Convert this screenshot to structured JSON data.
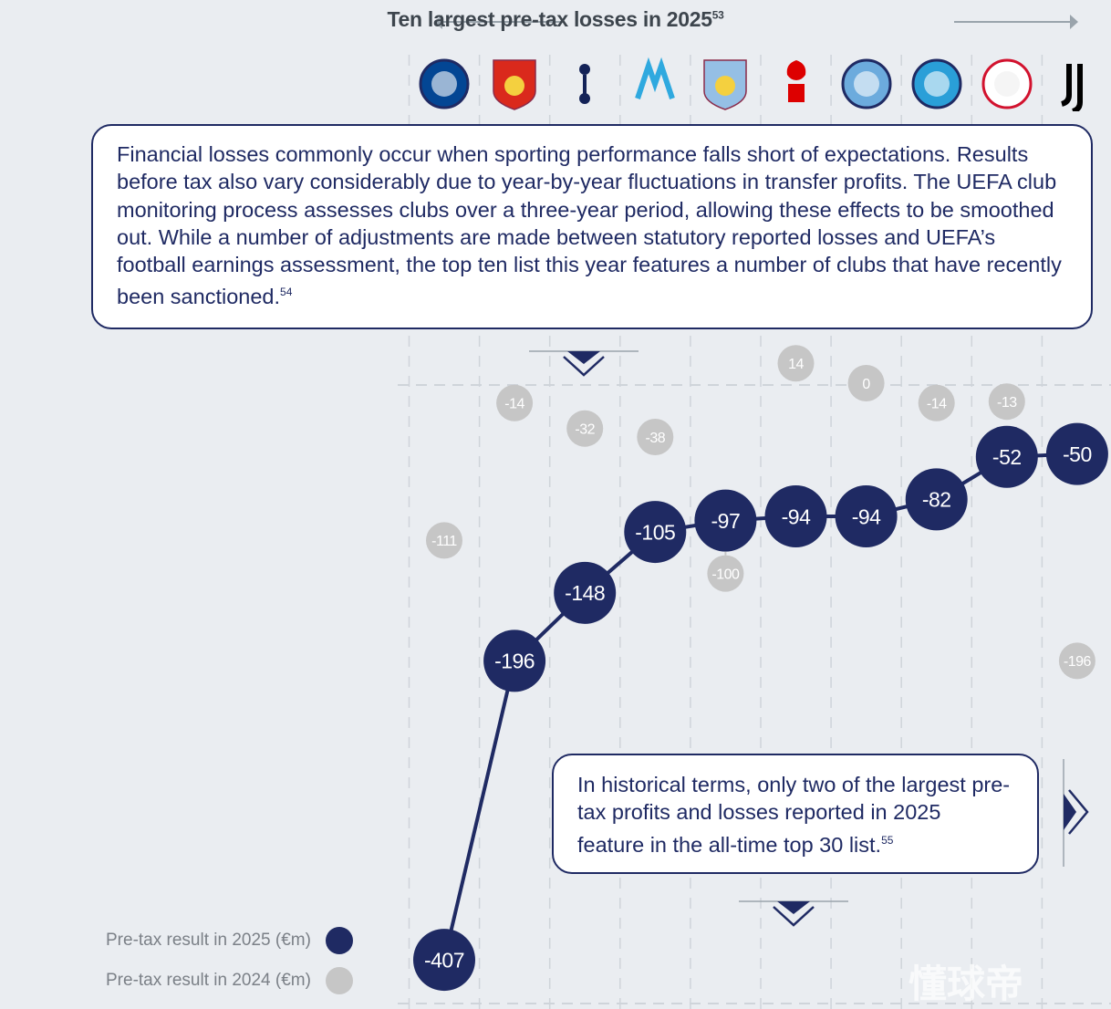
{
  "header": {
    "title": "Ten largest pre-tax losses in 2025",
    "footnote": "53"
  },
  "logos": [
    {
      "icon": "chelsea-crest-icon",
      "text": "CHELSEA",
      "color": "#034694"
    },
    {
      "icon": "lyon-crest-icon",
      "text": "OLYMPIQUE LYONNAIS OL",
      "color": "#da291c"
    },
    {
      "icon": "tottenham-crest-icon",
      "text": "TOTTENHAM HOTSPUR",
      "color": "#132257"
    },
    {
      "icon": "marseille-crest-icon",
      "text": "DROIT AU BUT",
      "color": "#2fa9df"
    },
    {
      "icon": "aston-villa-crest-icon",
      "text": "AVFC",
      "color": "#95bfe5"
    },
    {
      "icon": "nottingham-forest-crest-icon",
      "text": "FOREST",
      "color": "#dd0000"
    },
    {
      "icon": "manchester-city-crest-icon",
      "text": "MANCHESTER CITY",
      "color": "#6cabdd"
    },
    {
      "icon": "strasbourg-crest-icon",
      "text": "RCS",
      "color": "#2a9fd8"
    },
    {
      "icon": "ajax-crest-icon",
      "text": "AJAX",
      "color": "#d2122e"
    },
    {
      "icon": "juventus-crest-icon",
      "text": "J",
      "color": "#000000"
    }
  ],
  "intro": {
    "text": "Financial losses commonly occur when sporting performance falls short of expectations. Results before tax also vary considerably due to year-by-year fluctuations in transfer profits. The UEFA club monitoring process assesses clubs over a three-year period, allowing these effects to be smoothed out. While a number of adjustments are made between statutory reported losses and UEFA’s football earnings assessment, the top ten list this year features a number of clubs that have recently been sanctioned.",
    "footnote": "54"
  },
  "note": {
    "text": "In historical terms, only two of the largest pre-tax profits and losses reported in 2025 feature in the all-time top 30 list.",
    "footnote": "55"
  },
  "watermark": "懂球帝",
  "chart_data": {
    "type": "line",
    "title": "Ten largest pre-tax losses in 2025",
    "categories_icons": [
      "chelsea",
      "lyon",
      "tottenham",
      "marseille",
      "aston-villa",
      "nottingham-forest",
      "manchester-city",
      "strasbourg",
      "ajax",
      "juventus"
    ],
    "series": [
      {
        "name": "Pre-tax result in 2025 (€m)",
        "color": "#1f2a63",
        "values": [
          -407,
          -196,
          -148,
          -105,
          -97,
          -94,
          -94,
          -82,
          -52,
          -50
        ]
      },
      {
        "name": "Pre-tax result in 2024 (€m)",
        "color": "#c6c6c6",
        "values": [
          -111,
          -14,
          -32,
          -38,
          -100,
          14,
          0,
          -14,
          -13,
          -196
        ]
      }
    ],
    "zero_line": true,
    "grid": "dashed vertical",
    "legend": "bottom-left",
    "ylim": [
      -420,
      20
    ]
  }
}
